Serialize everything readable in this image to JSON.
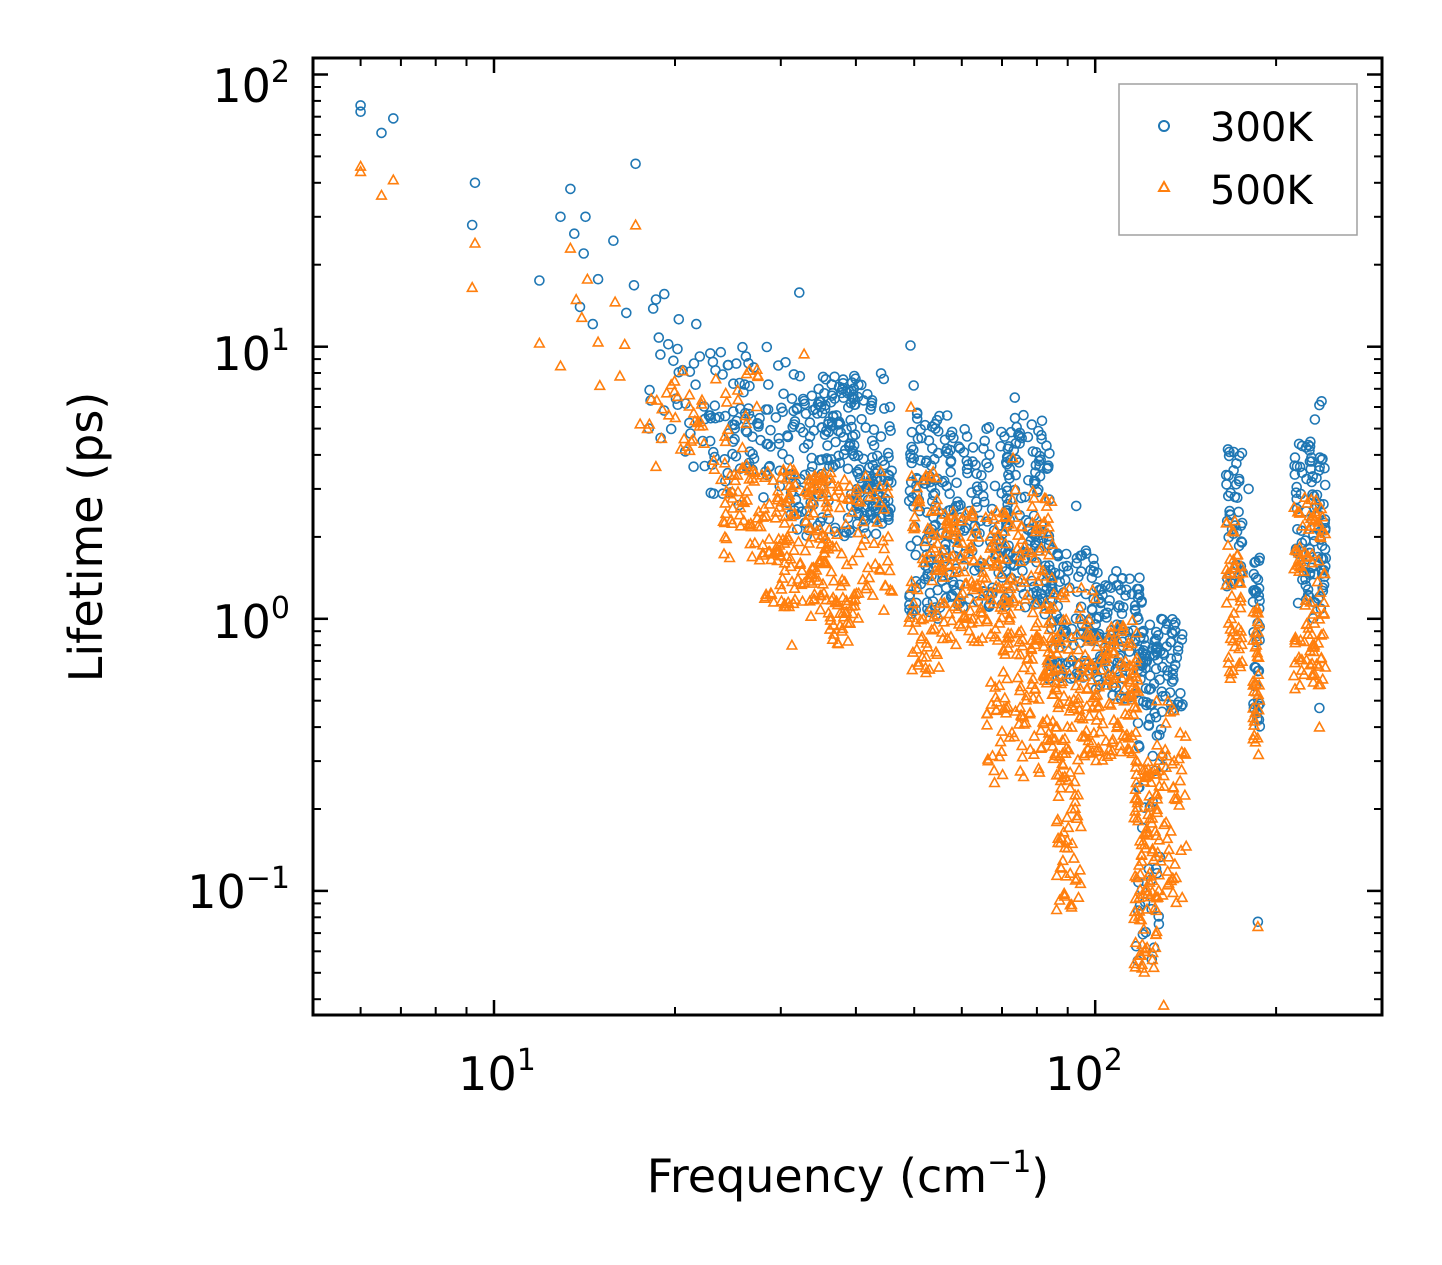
{
  "chart_data": {
    "type": "scatter",
    "title": "",
    "xlabel": "Frequency (cm",
    "xlabel_exponent": "−1",
    "xlabel_suffix": ")",
    "ylabel": "Lifetime (ps)",
    "xscale": "log",
    "yscale": "log",
    "xlim": [
      5,
      300
    ],
    "ylim": [
      0.035,
      115
    ],
    "x_ticks": [
      {
        "value": 10,
        "base": "10",
        "exp": "1"
      },
      {
        "value": 100,
        "base": "10",
        "exp": "2"
      }
    ],
    "y_ticks": [
      {
        "value": 0.1,
        "base": "10",
        "exp": "−1"
      },
      {
        "value": 1,
        "base": "10",
        "exp": "0"
      },
      {
        "value": 10,
        "base": "10",
        "exp": "1"
      },
      {
        "value": 100,
        "base": "10",
        "exp": "2"
      }
    ],
    "legend_position": "top-right",
    "series": [
      {
        "name": "300K",
        "color": "#1f77b4",
        "marker": "circle-open",
        "points": [
          [
            6.0,
            77
          ],
          [
            6.0,
            73
          ],
          [
            6.5,
            61
          ],
          [
            6.8,
            69
          ],
          [
            9.2,
            28
          ],
          [
            9.3,
            40
          ],
          [
            11.9,
            17.5
          ],
          [
            12.9,
            30
          ],
          [
            13.4,
            38
          ],
          [
            13.6,
            26
          ],
          [
            13.9,
            14
          ],
          [
            14.1,
            22
          ],
          [
            14.2,
            30
          ],
          [
            14.6,
            12.1
          ],
          [
            14.9,
            17.7
          ],
          [
            15.8,
            24.5
          ],
          [
            16.6,
            13.3
          ],
          [
            17.1,
            16.8
          ],
          [
            17.2,
            47
          ],
          [
            18.4,
            13.8
          ],
          [
            18.6,
            14.9
          ],
          [
            19.2,
            15.6
          ],
          [
            20.3,
            12.6
          ],
          [
            21.7,
            12.1
          ],
          [
            18.8,
            10.8
          ],
          [
            19.5,
            10.2
          ],
          [
            20.2,
            9.8
          ],
          [
            22.0,
            9.2
          ],
          [
            24.0,
            7.9
          ],
          [
            26.0,
            6.8
          ],
          [
            32.2,
            15.8
          ],
          [
            49.3,
            10.1
          ],
          [
            49.9,
            7.2
          ],
          [
            73.5,
            6.5
          ],
          [
            76.0,
            5.6
          ],
          [
            93.0,
            2.6
          ],
          [
            170,
            4.1
          ],
          [
            180,
            3.0
          ],
          [
            186.5,
            0.077
          ],
          [
            232,
            5.4
          ],
          [
            236,
            6.1
          ],
          [
            238,
            6.3
          ],
          [
            236,
            0.47
          ]
        ],
        "clusters": [
          {
            "x": [
              18,
              32
            ],
            "y": [
              3.6,
              10.0
            ],
            "n": 70
          },
          {
            "x": [
              22,
              34
            ],
            "y": [
              2.6,
              6.0
            ],
            "n": 60
          },
          {
            "x": [
              31,
              46
            ],
            "y": [
              2.0,
              8.0
            ],
            "n": 150
          },
          {
            "x": [
              34,
              40
            ],
            "y": [
              4.0,
              7.8
            ],
            "n": 50
          },
          {
            "x": [
              40,
              46
            ],
            "y": [
              2.3,
              3.6
            ],
            "n": 50
          },
          {
            "x": [
              49,
              57
            ],
            "y": [
              1.0,
              6.0
            ],
            "n": 120
          },
          {
            "x": [
              57,
              73
            ],
            "y": [
              1.1,
              5.3
            ],
            "n": 140
          },
          {
            "x": [
              70,
              84
            ],
            "y": [
              1.1,
              5.5
            ],
            "n": 110
          },
          {
            "x": [
              82,
              100
            ],
            "y": [
              0.6,
              1.8
            ],
            "n": 110
          },
          {
            "x": [
              100,
              120
            ],
            "y": [
              0.5,
              1.5
            ],
            "n": 110
          },
          {
            "x": [
              118,
              140
            ],
            "y": [
              0.45,
              1.0
            ],
            "n": 90
          },
          {
            "x": [
              117,
              130
            ],
            "y": [
              0.055,
              0.45
            ],
            "n": 40
          },
          {
            "x": [
              165,
              176
            ],
            "y": [
              1.3,
              4.3
            ],
            "n": 45
          },
          {
            "x": [
              183,
              188
            ],
            "y": [
              0.4,
              1.7
            ],
            "n": 40
          },
          {
            "x": [
              214,
              242
            ],
            "y": [
              1.0,
              4.5
            ],
            "n": 100
          }
        ]
      },
      {
        "name": "500K",
        "color": "#ff7f0e",
        "marker": "triangle-open",
        "points": [
          [
            6.0,
            46
          ],
          [
            6.0,
            44
          ],
          [
            6.5,
            36
          ],
          [
            6.8,
            41
          ],
          [
            9.2,
            16.5
          ],
          [
            9.3,
            24
          ],
          [
            11.9,
            10.3
          ],
          [
            12.9,
            8.5
          ],
          [
            13.4,
            23
          ],
          [
            13.7,
            14.9
          ],
          [
            14.0,
            12.8
          ],
          [
            14.3,
            17.7
          ],
          [
            14.9,
            10.4
          ],
          [
            15.9,
            14.6
          ],
          [
            16.5,
            10.2
          ],
          [
            17.2,
            28
          ],
          [
            16.2,
            7.8
          ],
          [
            15.0,
            7.2
          ],
          [
            17.5,
            5.2
          ],
          [
            18.0,
            5.0
          ],
          [
            19.0,
            4.6
          ],
          [
            21.0,
            4.3
          ],
          [
            32.8,
            9.4
          ],
          [
            49.4,
            6.0
          ],
          [
            31.3,
            0.8
          ],
          [
            73.0,
            3.9
          ],
          [
            68.0,
            0.25
          ],
          [
            186.5,
            0.074
          ],
          [
            130.0,
            0.038
          ],
          [
            236,
            0.4
          ]
        ],
        "clusters": [
          {
            "x": [
              18,
              28
            ],
            "y": [
              3.2,
              8.5
            ],
            "n": 55
          },
          {
            "x": [
              24,
              36
            ],
            "y": [
              1.6,
              3.6
            ],
            "n": 120
          },
          {
            "x": [
              27,
              34
            ],
            "y": [
              1.1,
              2.0
            ],
            "n": 50
          },
          {
            "x": [
              33,
              46
            ],
            "y": [
              1.0,
              3.5
            ],
            "n": 120
          },
          {
            "x": [
              36,
              40
            ],
            "y": [
              0.8,
              1.2
            ],
            "n": 30
          },
          {
            "x": [
              49,
              55
            ],
            "y": [
              0.6,
              3.5
            ],
            "n": 70
          },
          {
            "x": [
              55,
              70
            ],
            "y": [
              0.8,
              2.5
            ],
            "n": 130
          },
          {
            "x": [
              70,
              85
            ],
            "y": [
              0.6,
              3.0
            ],
            "n": 120
          },
          {
            "x": [
              66,
              82
            ],
            "y": [
              0.26,
              0.6
            ],
            "n": 60
          },
          {
            "x": [
              82,
              100
            ],
            "y": [
              0.3,
              1.3
            ],
            "n": 130
          },
          {
            "x": [
              86,
              95
            ],
            "y": [
              0.085,
              0.3
            ],
            "n": 55
          },
          {
            "x": [
              100,
              118
            ],
            "y": [
              0.3,
              1.0
            ],
            "n": 110
          },
          {
            "x": [
              116,
              128
            ],
            "y": [
              0.05,
              0.3
            ],
            "n": 110
          },
          {
            "x": [
              126,
              142
            ],
            "y": [
              0.09,
              0.5
            ],
            "n": 55
          },
          {
            "x": [
              165,
              176
            ],
            "y": [
              0.6,
              2.3
            ],
            "n": 50
          },
          {
            "x": [
              183,
              188
            ],
            "y": [
              0.3,
              1.1
            ],
            "n": 35
          },
          {
            "x": [
              214,
              242
            ],
            "y": [
              0.55,
              2.8
            ],
            "n": 100
          }
        ]
      }
    ]
  }
}
